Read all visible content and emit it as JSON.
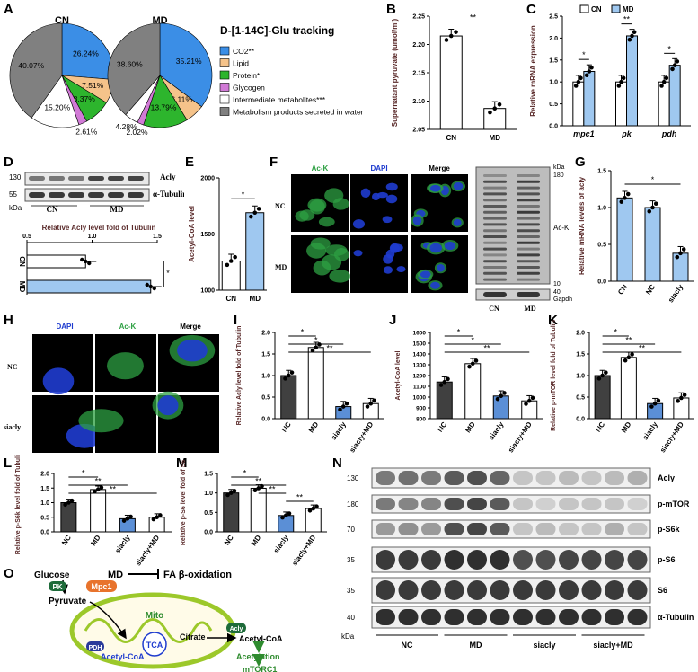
{
  "panel_letters": {
    "A": "A",
    "B": "B",
    "C": "C",
    "D": "D",
    "E": "E",
    "F": "F",
    "G": "G",
    "H": "H",
    "I": "I",
    "J": "J",
    "K": "K",
    "L": "L",
    "M": "M",
    "N": "N",
    "O": "O"
  },
  "colors": {
    "co2": "#3b8ee6",
    "lipid": "#f5c38a",
    "protein": "#2db52d",
    "glycogen": "#d17ad6",
    "intermediate": "#ffffff",
    "secreted": "#808080",
    "cn_bar": "#ffffff",
    "md_bar": "#9fc8f0",
    "dark_bar": "#404040",
    "sirna_bar": "#5b8fd6",
    "blot_band": "#1a1a1a",
    "green_fluor": "#2ea043",
    "blue_fluor": "#1f3ccf"
  },
  "panelA": {
    "title": "D-[1-14C]-Glu tracking",
    "legend": [
      "CO2**",
      "Lipid",
      "Protein*",
      "Glycogen",
      "Intermediate metabolites***",
      "Metabolism products secreted in water"
    ],
    "pies": [
      {
        "label": "CN",
        "slices": [
          26.24,
          7.51,
          8.37,
          2.61,
          15.2,
          40.07
        ],
        "labels": [
          "26.24%",
          "7.51%",
          "8.37%",
          "2.61%",
          "15.20%",
          "40.07%"
        ]
      },
      {
        "label": "MD",
        "slices": [
          35.21,
          6.11,
          13.79,
          2.02,
          4.28,
          38.6
        ],
        "labels": [
          "35.21%",
          "6.11%",
          "13.79%",
          "2.02%",
          "4.28%",
          "38.60%"
        ]
      }
    ]
  },
  "chart_data": [
    {
      "panel": "B",
      "type": "bar",
      "categories": [
        "CN",
        "MD"
      ],
      "values": [
        2.215,
        2.087
      ],
      "points": [
        [
          2.228,
          2.214,
          2.203
        ],
        [
          2.073,
          2.085,
          2.103
        ]
      ],
      "ylabel": "Supernatant pyruvate (umol/ml)",
      "ylim": [
        2.05,
        2.25
      ],
      "yticks": [
        "2.05",
        "2.10",
        "2.15",
        "2.20",
        "2.25"
      ],
      "sig": "**"
    },
    {
      "panel": "C",
      "type": "bar",
      "legend": [
        "CN",
        "MD"
      ],
      "categories": [
        "mpc1",
        "pk",
        "pdh"
      ],
      "series": [
        {
          "name": "CN",
          "values": [
            1.0,
            1.0,
            1.0
          ]
        },
        {
          "name": "MD",
          "values": [
            1.24,
            2.05,
            1.38
          ]
        }
      ],
      "ylabel": "Relative mRNA expression",
      "ylim": [
        0,
        2.5
      ],
      "yticks": [
        "0.0",
        "0.5",
        "1.0",
        "1.5",
        "2.0",
        "2.5"
      ],
      "sig": [
        "*",
        "**",
        "*"
      ]
    },
    {
      "panel": "D",
      "type": "bar",
      "categories": [
        "CN",
        "MD"
      ],
      "values": [
        0.95,
        1.45
      ],
      "xlabel": "Relative Acly level fold of Tubulin",
      "xticks": [
        "0.5",
        "1.0",
        "1.5"
      ],
      "xlim": [
        0.5,
        1.5
      ],
      "sig": "*"
    },
    {
      "panel": "E",
      "type": "bar",
      "categories": [
        "CN",
        "MD"
      ],
      "values": [
        1260,
        1690
      ],
      "ylabel": "Acetyl-CoA level",
      "ylim": [
        1000,
        2000
      ],
      "yticks": [
        "1000",
        "1500",
        "2000"
      ],
      "sig": "*"
    },
    {
      "panel": "G",
      "type": "bar",
      "categories": [
        "CN",
        "NC",
        "siacly"
      ],
      "values": [
        1.13,
        1.0,
        0.38
      ],
      "ylabel": "Relative mRNA levels of acly",
      "ylim": [
        0,
        1.5
      ],
      "yticks": [
        "0.0",
        "0.5",
        "1.0",
        "1.5"
      ],
      "sig": "*"
    },
    {
      "panel": "I",
      "type": "bar",
      "categories": [
        "NC",
        "MD",
        "siacly",
        "siacly+MD"
      ],
      "values": [
        1.0,
        1.65,
        0.28,
        0.35
      ],
      "ylabel": "Relative Acly level fold of Tubulin",
      "ylim": [
        0,
        2.0
      ],
      "yticks": [
        "0.0",
        "0.5",
        "1.0",
        "1.5",
        "2.0"
      ],
      "sig": [
        "*",
        "*",
        "**"
      ]
    },
    {
      "panel": "J",
      "type": "bar",
      "categories": [
        "NC",
        "MD",
        "siacly",
        "siacly+MD"
      ],
      "values": [
        1140,
        1310,
        1010,
        965
      ],
      "ylabel": "Acetyl-CoA level",
      "ylim": [
        800,
        1600
      ],
      "yticks": [
        "800",
        "900",
        "1000",
        "1100",
        "1200",
        "1300",
        "1400",
        "1500",
        "1600"
      ],
      "sig": [
        "*",
        "*",
        "**"
      ]
    },
    {
      "panel": "K",
      "type": "bar",
      "categories": [
        "NC",
        "MD",
        "siacly",
        "siacly+MD"
      ],
      "values": [
        1.0,
        1.42,
        0.35,
        0.48
      ],
      "ylabel": "Relative p-mTOR level fold of Tubulin",
      "ylim": [
        0,
        2.0
      ],
      "yticks": [
        "0.0",
        "0.5",
        "1.0",
        "1.5",
        "2.0"
      ],
      "sig": [
        "*",
        "**",
        "**"
      ]
    },
    {
      "panel": "L",
      "type": "bar",
      "categories": [
        "NC",
        "MD",
        "siacly",
        "siacly+MD"
      ],
      "values": [
        1.0,
        1.45,
        0.45,
        0.5
      ],
      "ylabel": "Relative p-S6k level fold of Tubulin",
      "ylim": [
        0,
        2.0
      ],
      "yticks": [
        "0.0",
        "0.5",
        "1.0",
        "1.5",
        "2.0"
      ],
      "sig": [
        "*",
        "**",
        "**"
      ]
    },
    {
      "panel": "M",
      "type": "bar",
      "categories": [
        "NC",
        "MD",
        "siacly",
        "siacly+MD"
      ],
      "values": [
        1.0,
        1.12,
        0.42,
        0.6
      ],
      "ylabel": "Relative p-S6 level fold of S6",
      "ylim": [
        0,
        1.5
      ],
      "yticks": [
        "0.0",
        "0.5",
        "1.0",
        "1.5"
      ],
      "sig": [
        "*",
        "**",
        "**",
        "**"
      ]
    }
  ],
  "panelD": {
    "band_labels": [
      "Acly",
      "α-Tubulin"
    ],
    "kda_marks": [
      "130",
      "55"
    ],
    "kda": "kDa",
    "groups": [
      "CN",
      "MD"
    ]
  },
  "panelF": {
    "channels": [
      "Ac-K",
      "DAPI",
      "Merge"
    ],
    "rows": [
      "NC",
      "MD"
    ],
    "blot_labels": [
      "Ac-K",
      "Gapdh"
    ],
    "kda": "kDa",
    "kda_marks": [
      "180",
      "10",
      "40"
    ],
    "lanes": [
      "CN",
      "MD"
    ]
  },
  "panelH": {
    "channels": [
      "DAPI",
      "Ac-K",
      "Merge"
    ],
    "rows": [
      "NC",
      "siacly"
    ]
  },
  "panelN": {
    "bands": [
      "Acly",
      "p-mTOR",
      "p-S6k",
      "p-S6",
      "S6",
      "α-Tubulin"
    ],
    "kda_marks": [
      "130",
      "180",
      "70",
      "35",
      "35",
      "40"
    ],
    "kda": "kDa",
    "groups": [
      "NC",
      "MD",
      "siacly",
      "siacly+MD"
    ]
  },
  "panelO": {
    "glucose": "Glucose",
    "pk": "PK",
    "pyruvate": "Pyruvate",
    "mpc1": "Mpc1",
    "md": "MD",
    "fa": "FA β-oxidation",
    "mito": "Mito",
    "pdh": "PDH",
    "acetyl_coa_in": "Acetyl-CoA",
    "tca": "TCA",
    "citrate": "Citrate",
    "acly": "Acly",
    "acetyl_coa_out": "Acetyl-CoA",
    "acetylation": "Acetylation",
    "mtorc1": "mTORC1"
  }
}
